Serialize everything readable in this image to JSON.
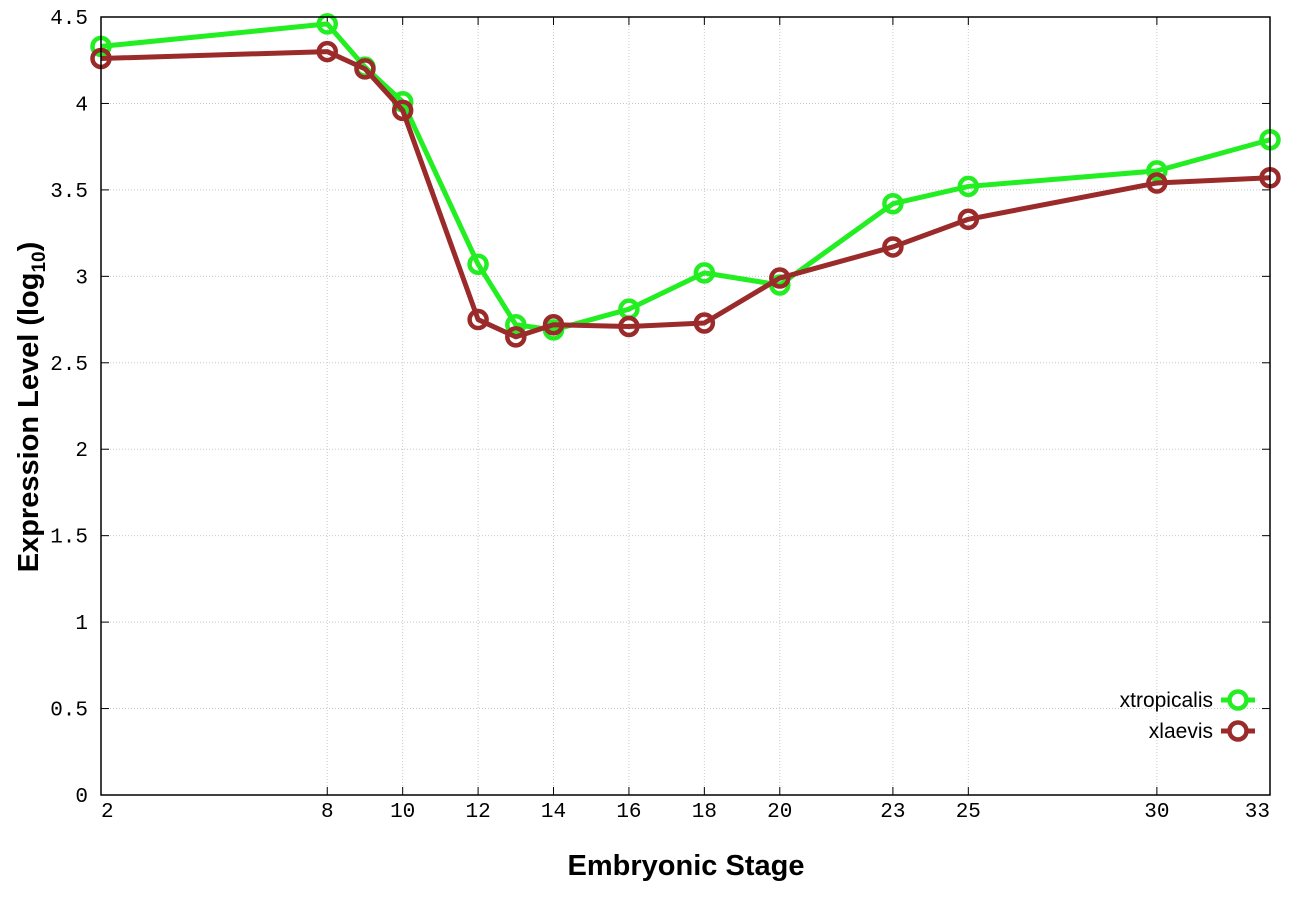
{
  "chart_data": {
    "type": "line",
    "xlabel": "Embryonic Stage",
    "ylabel_main": "Expression Level (log",
    "ylabel_sub": "10",
    "ylabel_close": ")",
    "xlim": [
      2,
      33
    ],
    "ylim": [
      0,
      4.5
    ],
    "x_ticks": [
      2,
      8,
      10,
      12,
      14,
      16,
      18,
      20,
      23,
      25,
      30,
      33
    ],
    "y_ticks": [
      "0",
      "0.5",
      "1",
      "1.5",
      "2",
      "2.5",
      "3",
      "3.5",
      "4",
      "4.5"
    ],
    "grid": true,
    "legend_position": "bottom-right",
    "x": [
      2,
      8,
      9,
      10,
      12,
      13,
      14,
      16,
      18,
      20,
      23,
      25,
      30,
      33
    ],
    "series": [
      {
        "name": "xtropicalis",
        "color": "#22ee22",
        "values": [
          4.33,
          4.46,
          4.21,
          4.01,
          3.07,
          2.72,
          2.69,
          2.81,
          3.02,
          2.95,
          3.42,
          3.52,
          3.61,
          3.79
        ]
      },
      {
        "name": "xlaevis",
        "color": "#9b2a2a",
        "values": [
          4.26,
          4.3,
          4.2,
          3.96,
          2.75,
          2.65,
          2.72,
          2.71,
          2.73,
          2.99,
          3.17,
          3.33,
          3.54,
          3.57
        ]
      }
    ]
  }
}
